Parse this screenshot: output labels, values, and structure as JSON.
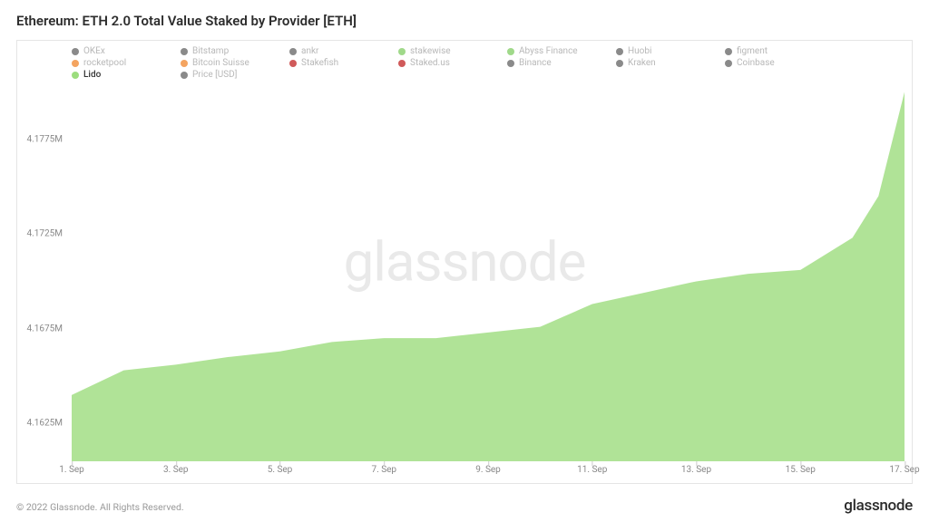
{
  "title": "Ethereum: ETH 2.0 Total Value Staked by Provider [ETH]",
  "watermark": "glassnode",
  "copyright": "© 2022 Glassnode. All Rights Reserved.",
  "brand": "glassnode",
  "legend": {
    "items": [
      {
        "label": "OKEx",
        "color": "#8a8a8a",
        "active": false
      },
      {
        "label": "Bitstamp",
        "color": "#8a8a8a",
        "active": false
      },
      {
        "label": "ankr",
        "color": "#8a8a8a",
        "active": false
      },
      {
        "label": "stakewise",
        "color": "#a0d98a",
        "active": false
      },
      {
        "label": "Abyss Finance",
        "color": "#a0d98a",
        "active": false
      },
      {
        "label": "Huobi",
        "color": "#8a8a8a",
        "active": false
      },
      {
        "label": "figment",
        "color": "#8a8a8a",
        "active": false
      },
      {
        "label": "rocketpool",
        "color": "#f4a460",
        "active": false
      },
      {
        "label": "Bitcoin Suisse",
        "color": "#f4a460",
        "active": false
      },
      {
        "label": "Stakefish",
        "color": "#d05a5a",
        "active": false
      },
      {
        "label": "Staked.us",
        "color": "#d05a5a",
        "active": false
      },
      {
        "label": "Binance",
        "color": "#8a8a8a",
        "active": false
      },
      {
        "label": "Kraken",
        "color": "#8a8a8a",
        "active": false
      },
      {
        "label": "Coinbase",
        "color": "#8a8a8a",
        "active": false
      },
      {
        "label": "Lido",
        "color": "#9cdd7e",
        "active": true
      },
      {
        "label": "Price [USD]",
        "color": "#8a8a8a",
        "active": false
      }
    ]
  },
  "chart": {
    "type": "area",
    "background_color": "#ffffff",
    "frame_border_color": "#e5e5e5",
    "series_fill_color": "#a7e08c",
    "series_fill_opacity": 0.9,
    "ylim": [
      4.1605,
      4.1805
    ],
    "y_ticks": [
      {
        "value": 4.1625,
        "label": "4.1625M"
      },
      {
        "value": 4.1675,
        "label": "4.1675M"
      },
      {
        "value": 4.1725,
        "label": "4.1725M"
      },
      {
        "value": 4.1775,
        "label": "4.1775M"
      }
    ],
    "x_ticks": [
      {
        "x": 0,
        "label": "1. Sep"
      },
      {
        "x": 2,
        "label": "3. Sep"
      },
      {
        "x": 4,
        "label": "5. Sep"
      },
      {
        "x": 6,
        "label": "7. Sep"
      },
      {
        "x": 8,
        "label": "9. Sep"
      },
      {
        "x": 10,
        "label": "11. Sep"
      },
      {
        "x": 12,
        "label": "13. Sep"
      },
      {
        "x": 14,
        "label": "15. Sep"
      },
      {
        "x": 16,
        "label": "17. Sep"
      }
    ],
    "xlim": [
      0,
      16
    ],
    "data_points": [
      {
        "x": 0,
        "y": 4.164
      },
      {
        "x": 1,
        "y": 4.1653
      },
      {
        "x": 2,
        "y": 4.1656
      },
      {
        "x": 3,
        "y": 4.166
      },
      {
        "x": 4,
        "y": 4.1663
      },
      {
        "x": 5,
        "y": 4.1668
      },
      {
        "x": 6,
        "y": 4.167
      },
      {
        "x": 7,
        "y": 4.167
      },
      {
        "x": 8,
        "y": 4.1673
      },
      {
        "x": 9,
        "y": 4.1676
      },
      {
        "x": 10,
        "y": 4.1688
      },
      {
        "x": 11,
        "y": 4.1694
      },
      {
        "x": 12,
        "y": 4.17
      },
      {
        "x": 13,
        "y": 4.1704
      },
      {
        "x": 14,
        "y": 4.1706
      },
      {
        "x": 15,
        "y": 4.1723
      },
      {
        "x": 15.5,
        "y": 4.1745
      },
      {
        "x": 16,
        "y": 4.18
      }
    ],
    "tick_label_fontsize": 10,
    "tick_label_color": "#888888",
    "watermark_color": "#e9e9e9"
  }
}
